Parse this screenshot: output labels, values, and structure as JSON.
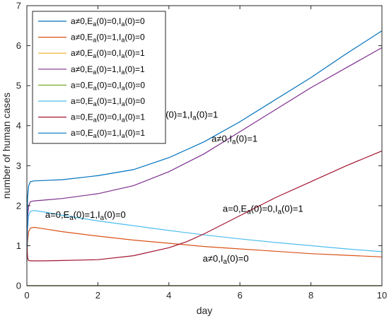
{
  "chart_data": {
    "type": "line",
    "xlabel": "day",
    "ylabel": "number of human cases",
    "xlim": [
      0,
      10
    ],
    "ylim": [
      0,
      7
    ],
    "xticks": [
      "0",
      "2",
      "4",
      "6",
      "8",
      "10"
    ],
    "yticks": [
      "0",
      "1",
      "2",
      "3",
      "4",
      "5",
      "6",
      "7"
    ],
    "legend_position": "top-left",
    "series": [
      {
        "name": "a≠0,E_a(0)=0,I_a(0)=0",
        "color": "#0072bd",
        "x": [
          0,
          10
        ],
        "y": [
          0,
          0
        ]
      },
      {
        "name": "a≠0,E_a(0)=1,I_a(0)=0",
        "color": "#d95319",
        "x": [
          0,
          0.02,
          0.05,
          0.1,
          0.2,
          0.5,
          1,
          2,
          3,
          4,
          5,
          6,
          7,
          8,
          9,
          10
        ],
        "y": [
          0.6,
          1.1,
          1.35,
          1.44,
          1.46,
          1.42,
          1.35,
          1.24,
          1.14,
          1.06,
          0.98,
          0.92,
          0.86,
          0.8,
          0.76,
          0.72
        ]
      },
      {
        "name": "a≠0,E_a(0)=0,I_a(0)=1",
        "color": "#edb120",
        "x": [
          0,
          10
        ],
        "y": [
          0,
          0
        ]
      },
      {
        "name": "a≠0,E_a(0)=1,I_a(0)=1",
        "color": "#7e2f8e",
        "x": [
          0,
          0.02,
          0.05,
          0.1,
          0.2,
          0.5,
          1,
          2,
          3,
          4,
          5,
          6,
          7,
          8,
          9,
          10
        ],
        "y": [
          1.0,
          1.7,
          2.0,
          2.1,
          2.12,
          2.14,
          2.18,
          2.3,
          2.5,
          2.85,
          3.3,
          3.85,
          4.4,
          4.95,
          5.45,
          5.95
        ]
      },
      {
        "name": "a=0,E_a(0)=0,I_a(0)=0",
        "color": "#77ac30",
        "x": [
          0,
          10
        ],
        "y": [
          0,
          0
        ]
      },
      {
        "name": "a=0,E_a(0)=1,I_a(0)=0",
        "color": "#4dbeee",
        "x": [
          0,
          0.02,
          0.05,
          0.1,
          0.2,
          0.5,
          1,
          2,
          3,
          4,
          5,
          6,
          7,
          8,
          9,
          10
        ],
        "y": [
          0.6,
          1.4,
          1.75,
          1.86,
          1.88,
          1.84,
          1.76,
          1.62,
          1.5,
          1.38,
          1.27,
          1.17,
          1.08,
          1.0,
          0.92,
          0.85
        ]
      },
      {
        "name": "a=0,E_a(0)=0,I_a(0)=1",
        "color": "#a2142f",
        "x": [
          0,
          0.02,
          0.05,
          0.1,
          0.2,
          0.5,
          1,
          2,
          3,
          4,
          4.5,
          5,
          6,
          7,
          8,
          9,
          10
        ],
        "y": [
          1.0,
          0.7,
          0.63,
          0.62,
          0.62,
          0.62,
          0.63,
          0.65,
          0.75,
          0.95,
          1.1,
          1.3,
          1.75,
          2.2,
          2.6,
          3.0,
          3.37
        ]
      },
      {
        "name": "a=0,E_a(0)=1,I_a(0)=1",
        "color": "#0072bd",
        "x": [
          0,
          0.02,
          0.05,
          0.1,
          0.2,
          0.5,
          1,
          2,
          3,
          4,
          5,
          6,
          7,
          8,
          9,
          10
        ],
        "y": [
          1.0,
          2.2,
          2.5,
          2.6,
          2.62,
          2.63,
          2.65,
          2.75,
          2.9,
          3.2,
          3.6,
          4.1,
          4.65,
          5.2,
          5.8,
          6.37
        ]
      }
    ],
    "annotations": [
      {
        "text": "a=0,E_a(0)=1,I_a(0)=1",
        "x": 4.25,
        "y": 4.2
      },
      {
        "text": "a≠0,I_a(0)=1",
        "x": 5.85,
        "y": 3.6
      },
      {
        "text": "a=0,E_a(0)=0,I_a(0)=1",
        "x": 6.65,
        "y": 1.85
      },
      {
        "text": "a=0,E_a(0)=1,I_a(0)=0",
        "x": 1.65,
        "y": 1.7
      },
      {
        "text": "a≠0,I_a(0)=0",
        "x": 5.6,
        "y": 0.6
      }
    ]
  }
}
